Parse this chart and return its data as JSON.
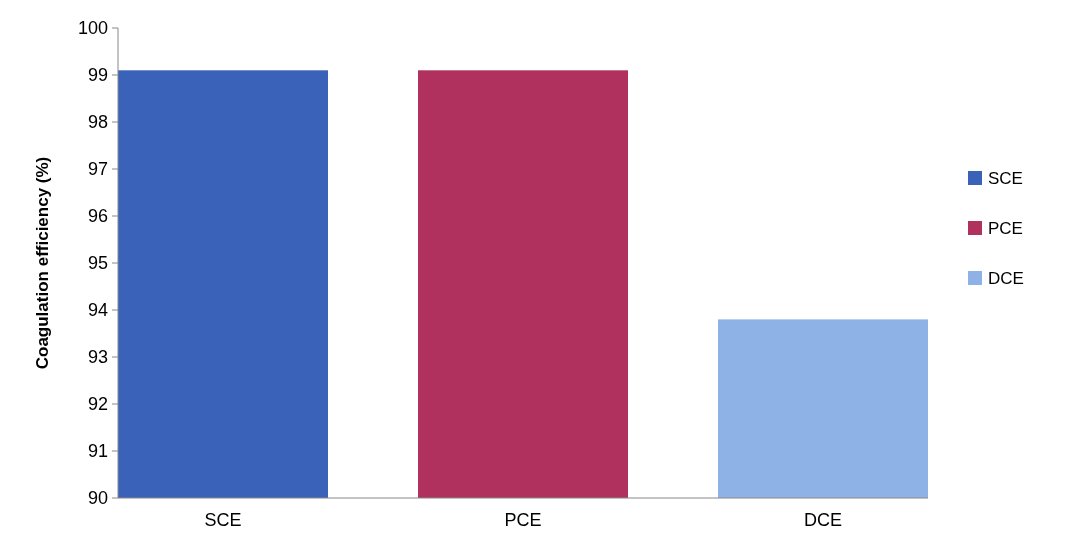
{
  "chart_data": {
    "type": "bar",
    "ylabel": "Coagulation efficiency (%)",
    "categories": [
      "SCE",
      "PCE",
      "DCE"
    ],
    "series": [
      {
        "name": "SCE",
        "color": "#3a62b8",
        "values": [
          99.1,
          null,
          null
        ]
      },
      {
        "name": "PCE",
        "color": "#b0305e",
        "values": [
          null,
          99.1,
          null
        ]
      },
      {
        "name": "DCE",
        "color": "#8fb2e6",
        "values": [
          null,
          null,
          93.8
        ]
      }
    ],
    "ylim": [
      90,
      100
    ],
    "yticks": [
      90,
      91,
      92,
      93,
      94,
      95,
      96,
      97,
      98,
      99,
      100
    ],
    "grid": false,
    "legend": "right"
  }
}
